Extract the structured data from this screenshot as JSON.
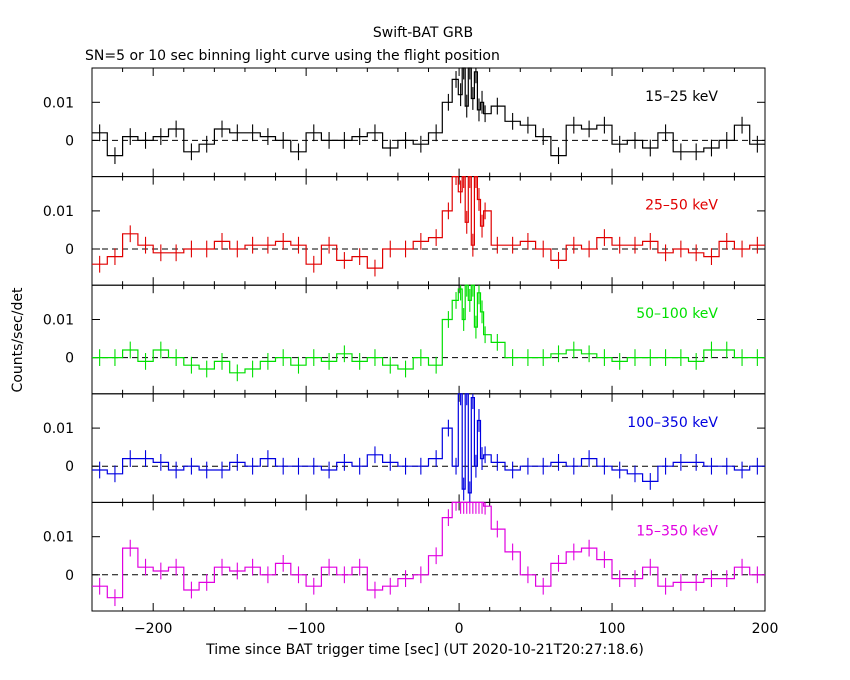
{
  "chart_data": {
    "type": "line",
    "title": "Swift-BAT GRB",
    "subtitle": "SN=5 or 10 sec binning light curve using the flight position",
    "xlabel": "Time since BAT trigger time [sec] (UT 2020-10-21T20:27:18.6)",
    "ylabel": "Counts/sec/det",
    "xlim": [
      -240,
      200
    ],
    "ylim": [
      -0.0095,
      0.019
    ],
    "x_ticks": [
      -200,
      -100,
      0,
      100,
      200
    ],
    "x_tick_labels": [
      "−200",
      "−100",
      "0",
      "100",
      "200"
    ],
    "y_ticks": [
      0,
      0.01
    ],
    "y_tick_labels": [
      "0",
      "0.01"
    ],
    "reference_line": 0,
    "grid": false,
    "panels": [
      {
        "name": "15–25 keV",
        "color": "#000000",
        "x": [
          -235,
          -225,
          -215,
          -205,
          -195,
          -185,
          -175,
          -165,
          -155,
          -145,
          -135,
          -125,
          -115,
          -105,
          -95,
          -85,
          -75,
          -65,
          -55,
          -45,
          -35,
          -25,
          -15,
          -7,
          -2,
          1,
          3,
          5,
          7,
          9,
          11,
          13,
          15,
          17,
          25,
          35,
          45,
          55,
          65,
          75,
          85,
          95,
          105,
          115,
          125,
          135,
          145,
          155,
          165,
          175,
          185,
          195
        ],
        "y": [
          0.002,
          -0.004,
          0.001,
          0.0,
          0.001,
          0.003,
          -0.003,
          -0.001,
          0.003,
          0.002,
          0.002,
          0.001,
          0.0,
          -0.003,
          0.002,
          0.0,
          0.0,
          0.001,
          0.002,
          -0.002,
          0.0,
          -0.001,
          0.002,
          0.01,
          0.016,
          0.012,
          0.019,
          0.009,
          0.019,
          0.011,
          0.018,
          0.008,
          0.01,
          0.007,
          0.009,
          0.005,
          0.004,
          0.001,
          -0.004,
          0.004,
          0.003,
          0.004,
          -0.001,
          0.0,
          -0.002,
          0.002,
          -0.003,
          -0.003,
          -0.002,
          0.0,
          0.004,
          -0.001
        ]
      },
      {
        "name": "25–50 keV",
        "color": "#e00000",
        "x": [
          -235,
          -225,
          -215,
          -205,
          -195,
          -185,
          -175,
          -165,
          -155,
          -145,
          -135,
          -125,
          -115,
          -105,
          -95,
          -85,
          -75,
          -65,
          -55,
          -45,
          -35,
          -25,
          -15,
          -7,
          -2,
          1,
          3,
          5,
          7,
          9,
          11,
          13,
          15,
          17,
          25,
          35,
          45,
          55,
          65,
          75,
          85,
          95,
          105,
          115,
          125,
          135,
          145,
          155,
          165,
          175,
          185,
          195
        ],
        "y": [
          -0.004,
          -0.002,
          0.004,
          0.001,
          -0.001,
          -0.001,
          0.0,
          0.0,
          0.002,
          0.0,
          0.001,
          0.001,
          0.002,
          0.001,
          -0.004,
          0.001,
          -0.003,
          -0.002,
          -0.005,
          0.0,
          0.0,
          0.002,
          0.003,
          0.01,
          0.019,
          0.015,
          0.019,
          0.007,
          0.019,
          0.001,
          0.019,
          0.013,
          0.006,
          0.01,
          0.001,
          0.001,
          0.002,
          0.0,
          -0.003,
          0.001,
          0.0,
          0.003,
          0.001,
          0.001,
          0.002,
          -0.001,
          0.0,
          -0.001,
          -0.002,
          0.002,
          0.0,
          0.001
        ]
      },
      {
        "name": "50–100 keV",
        "color": "#00e000",
        "x": [
          -235,
          -225,
          -215,
          -205,
          -195,
          -185,
          -175,
          -165,
          -155,
          -145,
          -135,
          -125,
          -115,
          -105,
          -95,
          -85,
          -75,
          -65,
          -55,
          -45,
          -35,
          -25,
          -15,
          -7,
          -2,
          1,
          3,
          5,
          7,
          9,
          11,
          13,
          15,
          17,
          25,
          35,
          45,
          55,
          65,
          75,
          85,
          95,
          105,
          115,
          125,
          135,
          145,
          155,
          165,
          175,
          185,
          195
        ],
        "y": [
          0.0,
          0.0,
          0.002,
          -0.001,
          0.002,
          0.0,
          -0.002,
          -0.003,
          -0.001,
          -0.004,
          -0.003,
          -0.001,
          0.0,
          -0.002,
          0.0,
          -0.001,
          0.001,
          -0.001,
          0.0,
          -0.002,
          -0.003,
          0.0,
          -0.002,
          0.01,
          0.015,
          0.018,
          0.01,
          0.019,
          0.015,
          0.019,
          0.008,
          0.017,
          0.012,
          0.006,
          0.004,
          0.0,
          0.0,
          0.0,
          0.001,
          0.002,
          0.001,
          0.0,
          -0.001,
          0.0,
          0.0,
          0.0,
          0.0,
          -0.001,
          0.002,
          0.002,
          0.0,
          0.0
        ]
      },
      {
        "name": "100–350 keV",
        "color": "#0000e0",
        "x": [
          -235,
          -225,
          -215,
          -205,
          -195,
          -185,
          -175,
          -165,
          -155,
          -145,
          -135,
          -125,
          -115,
          -105,
          -95,
          -85,
          -75,
          -65,
          -55,
          -45,
          -35,
          -25,
          -15,
          -7,
          -2,
          1,
          3,
          5,
          7,
          9,
          11,
          13,
          15,
          17,
          25,
          35,
          45,
          55,
          65,
          75,
          85,
          95,
          105,
          115,
          125,
          135,
          145,
          155,
          165,
          175,
          185,
          195
        ],
        "y": [
          -0.001,
          -0.002,
          0.002,
          0.002,
          0.001,
          -0.001,
          0.0,
          -0.001,
          -0.001,
          0.001,
          0.0,
          0.002,
          0.0,
          0.0,
          0.0,
          -0.001,
          0.001,
          0.0,
          0.003,
          0.001,
          0.0,
          0.0,
          0.002,
          0.01,
          0.0,
          0.019,
          -0.006,
          0.019,
          -0.007,
          0.018,
          0.0,
          0.012,
          0.002,
          0.003,
          0.001,
          -0.001,
          0.0,
          0.0,
          0.001,
          0.0,
          0.002,
          0.0,
          -0.001,
          -0.002,
          -0.004,
          0.0,
          0.001,
          0.001,
          0.0,
          0.0,
          -0.001,
          0.0
        ]
      },
      {
        "name": "15–350 keV",
        "color": "#e000e0",
        "x": [
          -235,
          -225,
          -215,
          -205,
          -195,
          -185,
          -175,
          -165,
          -155,
          -145,
          -135,
          -125,
          -115,
          -105,
          -95,
          -85,
          -75,
          -65,
          -55,
          -45,
          -35,
          -25,
          -15,
          -7,
          -2,
          1,
          3,
          5,
          7,
          9,
          11,
          13,
          15,
          17,
          25,
          35,
          45,
          55,
          65,
          75,
          85,
          95,
          105,
          115,
          125,
          135,
          145,
          155,
          165,
          175,
          185,
          195
        ],
        "y": [
          -0.003,
          -0.006,
          0.007,
          0.002,
          0.001,
          0.002,
          -0.004,
          -0.002,
          0.002,
          0.001,
          0.002,
          0.0,
          0.003,
          0.0,
          -0.003,
          0.002,
          0.0,
          0.002,
          -0.004,
          -0.003,
          -0.001,
          0.0,
          0.005,
          0.015,
          0.019,
          0.019,
          0.019,
          0.019,
          0.019,
          0.019,
          0.019,
          0.019,
          0.019,
          0.018,
          0.012,
          0.006,
          0.0,
          -0.003,
          0.003,
          0.006,
          0.007,
          0.004,
          -0.001,
          -0.001,
          0.002,
          -0.003,
          -0.002,
          -0.002,
          -0.001,
          -0.001,
          0.002,
          0.0
        ]
      }
    ]
  }
}
